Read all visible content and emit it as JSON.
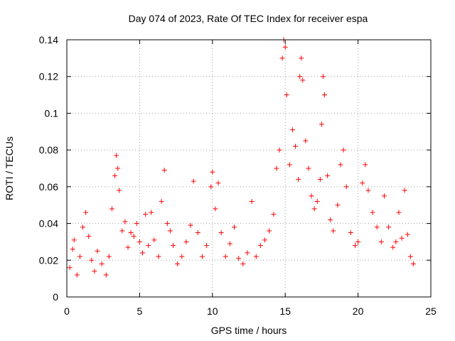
{
  "chart_data": {
    "type": "scatter",
    "title": "Day 074 of 2023, Rate Of TEC Index for receiver espa",
    "xlabel": "GPS time / hours",
    "ylabel": "ROTI / TECUs",
    "xlim": [
      0,
      25
    ],
    "ylim": [
      0,
      0.14
    ],
    "xticks": [
      0,
      5,
      10,
      15,
      20,
      25
    ],
    "xtick_labels": [
      "0",
      "5",
      "10",
      "15",
      "20",
      "25"
    ],
    "yticks": [
      0,
      0.02,
      0.04,
      0.06,
      0.08,
      0.1,
      0.12,
      0.14
    ],
    "ytick_labels": [
      "0",
      "0.02",
      "0.04",
      "0.06",
      "0.08",
      "0.1",
      "0.12",
      "0.14"
    ],
    "grid": true,
    "marker": "+",
    "series_color": "#ff0000",
    "series": [
      {
        "name": "ROTI",
        "points": [
          [
            0.2,
            0.016
          ],
          [
            0.4,
            0.026
          ],
          [
            0.5,
            0.031
          ],
          [
            0.7,
            0.012
          ],
          [
            0.9,
            0.022
          ],
          [
            1.1,
            0.038
          ],
          [
            1.3,
            0.046
          ],
          [
            1.5,
            0.033
          ],
          [
            1.7,
            0.02
          ],
          [
            1.9,
            0.014
          ],
          [
            2.1,
            0.025
          ],
          [
            2.4,
            0.018
          ],
          [
            2.7,
            0.012
          ],
          [
            2.9,
            0.022
          ],
          [
            3.1,
            0.048
          ],
          [
            3.3,
            0.066
          ],
          [
            3.4,
            0.077
          ],
          [
            3.5,
            0.07
          ],
          [
            3.6,
            0.058
          ],
          [
            3.8,
            0.036
          ],
          [
            4.0,
            0.041
          ],
          [
            4.2,
            0.027
          ],
          [
            4.4,
            0.035
          ],
          [
            4.6,
            0.033
          ],
          [
            4.8,
            0.04
          ],
          [
            5.0,
            0.03
          ],
          [
            5.2,
            0.024
          ],
          [
            5.4,
            0.045
          ],
          [
            5.6,
            0.028
          ],
          [
            5.8,
            0.046
          ],
          [
            6.0,
            0.031
          ],
          [
            6.3,
            0.022
          ],
          [
            6.5,
            0.052
          ],
          [
            6.7,
            0.069
          ],
          [
            6.9,
            0.04
          ],
          [
            7.1,
            0.036
          ],
          [
            7.3,
            0.028
          ],
          [
            7.6,
            0.018
          ],
          [
            7.9,
            0.022
          ],
          [
            8.2,
            0.03
          ],
          [
            8.5,
            0.039
          ],
          [
            8.7,
            0.063
          ],
          [
            9.0,
            0.035
          ],
          [
            9.3,
            0.022
          ],
          [
            9.6,
            0.028
          ],
          [
            9.9,
            0.06
          ],
          [
            10.0,
            0.068
          ],
          [
            10.2,
            0.048
          ],
          [
            10.4,
            0.062
          ],
          [
            10.6,
            0.035
          ],
          [
            10.9,
            0.022
          ],
          [
            11.2,
            0.029
          ],
          [
            11.5,
            0.038
          ],
          [
            11.8,
            0.021
          ],
          [
            12.1,
            0.018
          ],
          [
            12.4,
            0.024
          ],
          [
            12.7,
            0.052
          ],
          [
            13.0,
            0.022
          ],
          [
            13.3,
            0.028
          ],
          [
            13.6,
            0.031
          ],
          [
            13.9,
            0.036
          ],
          [
            14.2,
            0.045
          ],
          [
            14.4,
            0.07
          ],
          [
            14.6,
            0.08
          ],
          [
            14.8,
            0.13
          ],
          [
            14.9,
            0.14
          ],
          [
            15.0,
            0.136
          ],
          [
            15.1,
            0.11
          ],
          [
            15.3,
            0.072
          ],
          [
            15.5,
            0.091
          ],
          [
            15.7,
            0.082
          ],
          [
            15.9,
            0.064
          ],
          [
            16.0,
            0.12
          ],
          [
            16.1,
            0.13
          ],
          [
            16.2,
            0.118
          ],
          [
            16.4,
            0.085
          ],
          [
            16.6,
            0.07
          ],
          [
            16.8,
            0.055
          ],
          [
            17.0,
            0.048
          ],
          [
            17.2,
            0.052
          ],
          [
            17.4,
            0.064
          ],
          [
            17.5,
            0.094
          ],
          [
            17.6,
            0.12
          ],
          [
            17.7,
            0.11
          ],
          [
            17.9,
            0.066
          ],
          [
            18.1,
            0.042
          ],
          [
            18.3,
            0.036
          ],
          [
            18.6,
            0.05
          ],
          [
            18.8,
            0.072
          ],
          [
            19.0,
            0.08
          ],
          [
            19.2,
            0.06
          ],
          [
            19.5,
            0.035
          ],
          [
            19.8,
            0.028
          ],
          [
            20.0,
            0.03
          ],
          [
            20.3,
            0.062
          ],
          [
            20.5,
            0.072
          ],
          [
            20.7,
            0.058
          ],
          [
            21.0,
            0.046
          ],
          [
            21.3,
            0.038
          ],
          [
            21.6,
            0.03
          ],
          [
            21.8,
            0.055
          ],
          [
            22.1,
            0.038
          ],
          [
            22.4,
            0.027
          ],
          [
            22.6,
            0.03
          ],
          [
            22.8,
            0.046
          ],
          [
            23.0,
            0.032
          ],
          [
            23.2,
            0.058
          ],
          [
            23.4,
            0.034
          ],
          [
            23.6,
            0.022
          ],
          [
            23.8,
            0.018
          ]
        ]
      }
    ]
  }
}
